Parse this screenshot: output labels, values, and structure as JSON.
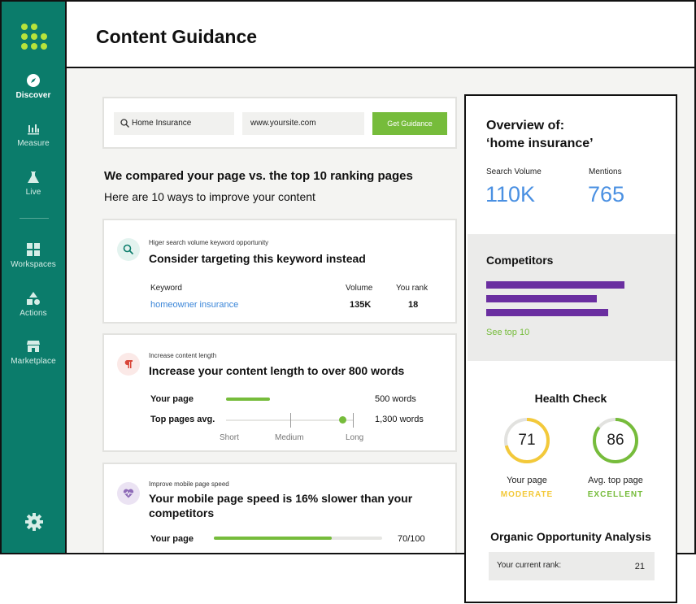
{
  "sidebar": {
    "items": [
      {
        "label": "Discover",
        "icon": "compass-icon"
      },
      {
        "label": "Measure",
        "icon": "bar-chart-icon"
      },
      {
        "label": "Live",
        "icon": "flask-icon"
      },
      {
        "label": "Workspaces",
        "icon": "grid-icon"
      },
      {
        "label": "Actions",
        "icon": "shapes-icon"
      },
      {
        "label": "Marketplace",
        "icon": "store-icon"
      }
    ],
    "settings_icon": "gear-icon"
  },
  "header": {
    "title": "Content Guidance"
  },
  "search": {
    "keyword": "Home Insurance",
    "url": "www.yoursite.com",
    "button": "Get Guidance"
  },
  "intro": {
    "title": "We compared your page vs. the top 10 ranking pages",
    "subtitle": "Here are 10 ways to improve your content"
  },
  "cards": [
    {
      "eyebrow": "Higer search volume keyword opportunity",
      "title": "Consider targeting this keyword instead",
      "col_keyword": "Keyword",
      "col_volume": "Volume",
      "col_rank": "You rank",
      "keyword": "homeowner insurance",
      "volume": "135K",
      "rank": "18"
    },
    {
      "eyebrow": "Increase content length",
      "title": "Increase your content length to over 800 words",
      "your_page_label": "Your page",
      "your_page_value": "500 words",
      "top_label": "Top pages avg.",
      "top_value": "1,300 words",
      "scale": [
        "Short",
        "Medium",
        "Long"
      ]
    },
    {
      "eyebrow": "Improve mobile page speed",
      "title": "Your mobile page speed is 16% slower than your competitors",
      "your_page_label": "Your page",
      "your_page_value": "70/100",
      "progress": 0.7
    }
  ],
  "overview": {
    "title_line1": "Overview of:",
    "title_line2": "‘home insurance’",
    "search_volume_label": "Search Volume",
    "search_volume": "110K",
    "mentions_label": "Mentions",
    "mentions": "765",
    "competitors_title": "Competitors",
    "see_top": "See top 10",
    "health_title": "Health Check",
    "your_page_score": "71",
    "your_page_label": "Your page",
    "your_page_status": "MODERATE",
    "avg_score": "86",
    "avg_label": "Avg. top page",
    "avg_status": "EXCELLENT",
    "analysis_title": "Organic Opportunity Analysis",
    "rank_label": "Your current rank:",
    "rank_value": "21"
  },
  "colors": {
    "sidebar": "#0b7c6b",
    "accent_green": "#76bc3b",
    "accent_blue": "#4a90e2",
    "purple": "#6a2ea0",
    "moderate": "#f3c93a"
  }
}
